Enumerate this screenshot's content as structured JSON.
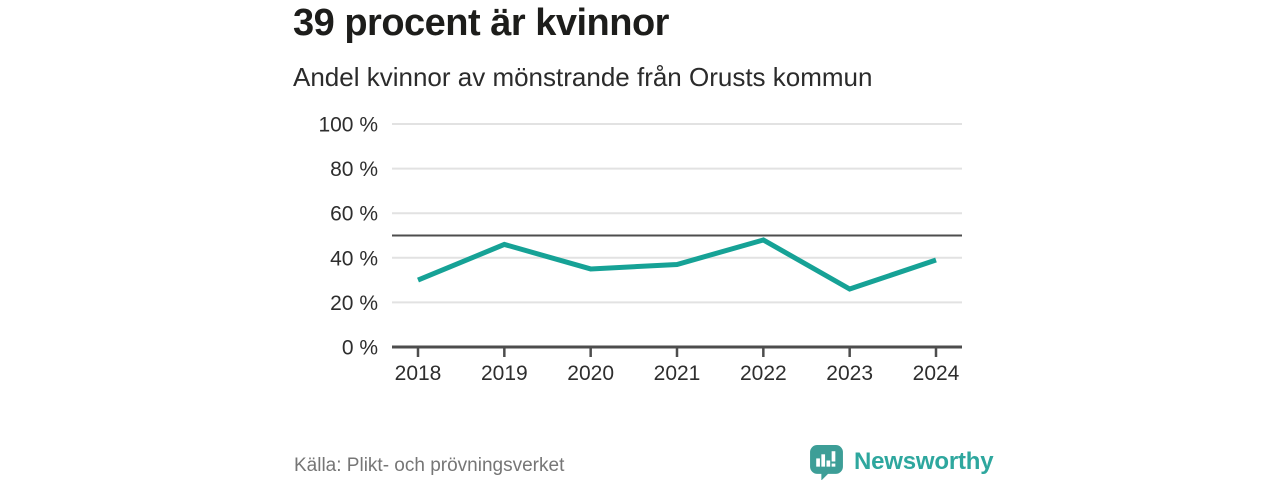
{
  "header": {
    "title": "39 procent är kvinnor",
    "subtitle": "Andel kvinnor av mönstrande från Orusts kommun"
  },
  "chart_data": {
    "type": "line",
    "title": "39 procent är kvinnor",
    "subtitle": "Andel kvinnor av mönstrande från Orusts kommun",
    "categories": [
      "2018",
      "2019",
      "2020",
      "2021",
      "2022",
      "2023",
      "2024"
    ],
    "series": [
      {
        "name": "Andel kvinnor av mönstrande",
        "values": [
          30,
          46,
          35,
          37,
          48,
          26,
          39
        ]
      }
    ],
    "xlabel": "",
    "ylabel": "",
    "ylim": [
      0,
      100
    ],
    "yticks": [
      0,
      20,
      40,
      60,
      80,
      100
    ],
    "ytick_suffix": " %",
    "reference_line": 50,
    "grid": true,
    "legend": "none",
    "colors": {
      "line": "#16a296",
      "grid": "#e2e2e2",
      "axis": "#4d4d4d",
      "reference_line": "#4d4d4d",
      "tick_label": "#2e2e2e"
    }
  },
  "footer": {
    "source": "Källa: Plikt- och prövningsverket",
    "brand": "Newsworthy",
    "brand_color": "#2ea79e",
    "brand_icon_color": "#3d9e97"
  }
}
